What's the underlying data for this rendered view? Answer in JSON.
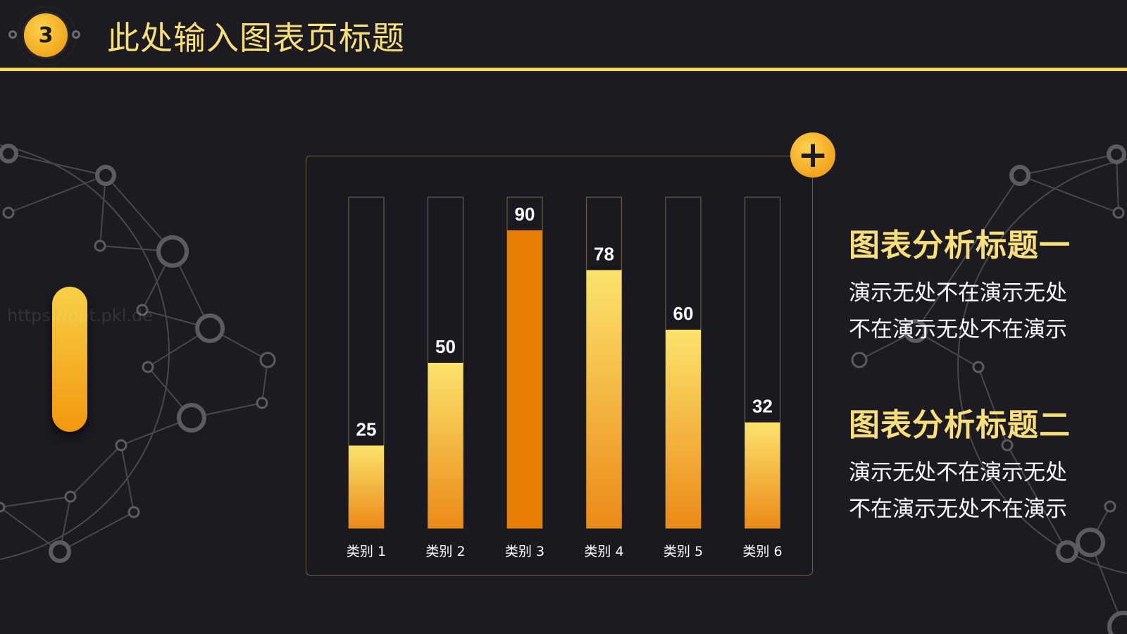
{
  "header": {
    "badge_number": "3",
    "title": "此处输入图表页标题"
  },
  "watermark": "https://ppt.pkl.de",
  "chart_panel": {
    "plus_label": "+"
  },
  "chart_data": {
    "type": "bar",
    "categories": [
      "类别 1",
      "类别 2",
      "类别 3",
      "类别 4",
      "类别 5",
      "类别 6"
    ],
    "values": [
      25,
      50,
      90,
      78,
      60,
      32
    ],
    "ylim": [
      0,
      100
    ],
    "title": "",
    "xlabel": "",
    "ylabel": "",
    "grid": false,
    "highlight_index": 2,
    "colors": {
      "gradient_top": "#fbe36d",
      "gradient_bottom": "#ec8a16",
      "highlight": "#e87e05",
      "track_border": "#6b5d3c",
      "value_label": "#ffffff",
      "category_label": "#ffffff"
    }
  },
  "analysis": [
    {
      "title": "图表分析标题一",
      "lines": [
        "演示无处不在演示无处",
        "不在演示无处不在演示"
      ]
    },
    {
      "title": "图表分析标题二",
      "lines": [
        "演示无处不在演示无处",
        "不在演示无处不在演示"
      ]
    }
  ],
  "colors": {
    "background": "#1d1b22",
    "accent_gold": "#f9df7a",
    "accent_orange": "#f3980f",
    "network_line": "#4a484e"
  }
}
